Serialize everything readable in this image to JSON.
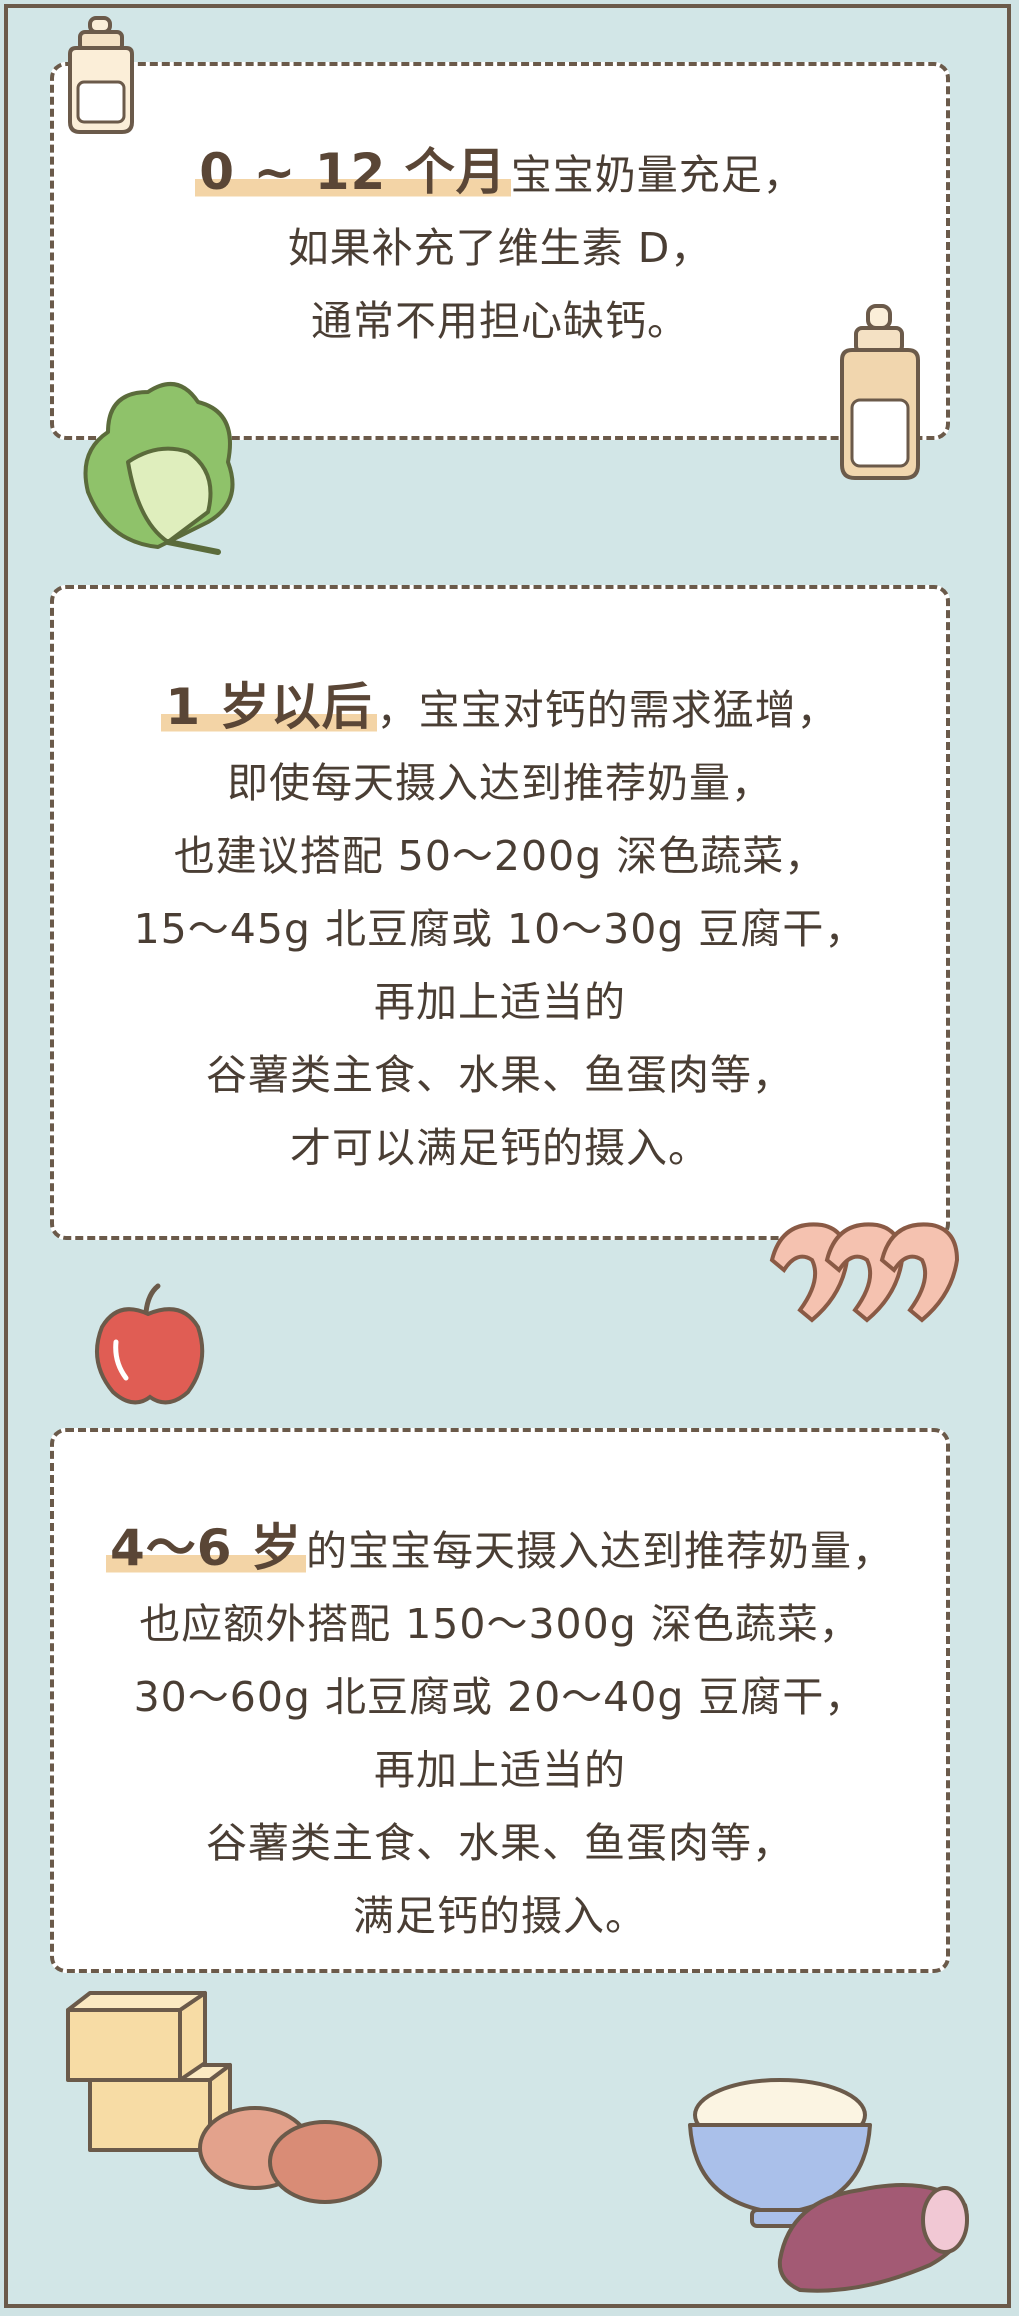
{
  "card1": {
    "highlight": "0 ~ 12 个月",
    "line1_rest": "宝宝奶量充足，",
    "line2": "如果补充了维生素 D，",
    "line3": "通常不用担心缺钙。"
  },
  "card2": {
    "highlight": "1 岁以后",
    "line1_rest": "，宝宝对钙的需求猛增，",
    "line2": "即使每天摄入达到推荐奶量，",
    "line3": "也建议搭配 50～200g 深色蔬菜，",
    "line4": "15～45g 北豆腐或 10～30g 豆腐干，",
    "line5": "再加上适当的",
    "line6": "谷薯类主食、水果、鱼蛋肉等，",
    "line7": "才可以满足钙的摄入。"
  },
  "card3": {
    "highlight": "4～6 岁",
    "line1_rest": "的宝宝每天摄入达到推荐奶量，",
    "line2": "也应额外搭配 150～300g 深色蔬菜，",
    "line3": "30～60g 北豆腐或 20～40g 豆腐干，",
    "line4": "再加上适当的",
    "line5": "谷薯类主食、水果、鱼蛋肉等，",
    "line6": "满足钙的摄入。"
  },
  "illustrations": [
    "milk-bottle-icon",
    "lettuce-icon",
    "shrimp-icon",
    "apple-icon",
    "tofu-icon",
    "egg-icon",
    "rice-bowl-icon",
    "sweet-potato-icon"
  ],
  "colors": {
    "background": "#d2e6e7",
    "border": "#6b5a4a",
    "highlight": "#f3d4a6",
    "text": "#4a3e34"
  }
}
